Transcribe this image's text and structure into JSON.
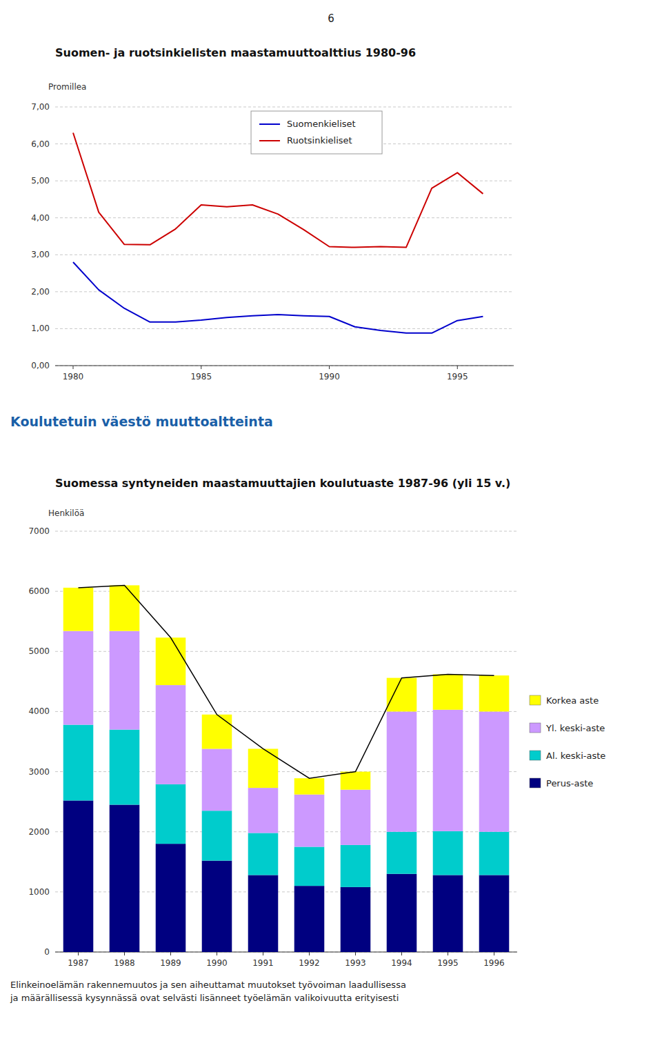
{
  "page_number": "6",
  "section_title": "Koulutetuin väestö muuttoaltteinta",
  "bottom_text": "Elinkeinoelämän rakennemuutos ja sen aiheuttamat muutokset työvoiman laadullisessa\nja määrällisessä kysynnässä ovat selvästi lisänneet työelämän valikoivuutta erityisesti",
  "chart_data": [
    {
      "type": "line",
      "title": "Suomen- ja ruotsinkielisten maastamuuttoalttius 1980-96",
      "ylabel": "Promillea",
      "x": [
        1980,
        1981,
        1982,
        1983,
        1984,
        1985,
        1986,
        1987,
        1988,
        1989,
        1990,
        1991,
        1992,
        1993,
        1994,
        1995,
        1996
      ],
      "series": [
        {
          "name": "Suomenkieliset",
          "color": "#0000cc",
          "values": [
            2.8,
            2.05,
            1.55,
            1.18,
            1.18,
            1.23,
            1.3,
            1.35,
            1.38,
            1.35,
            1.33,
            1.05,
            0.95,
            0.88,
            0.88,
            1.22,
            1.33
          ]
        },
        {
          "name": "Ruotsinkieliset",
          "color": "#cc0000",
          "values": [
            6.3,
            4.15,
            3.28,
            3.27,
            3.7,
            4.35,
            4.3,
            4.35,
            4.1,
            3.68,
            3.22,
            3.2,
            3.22,
            3.2,
            4.8,
            5.22,
            4.65
          ]
        }
      ],
      "xlim": [
        1979.3,
        1997.2
      ],
      "xticks": [
        1980,
        1985,
        1990,
        1995
      ],
      "ylim": [
        0,
        7
      ],
      "yticks": [
        {
          "value": 0,
          "label": "0,00"
        },
        {
          "value": 1,
          "label": "1,00"
        },
        {
          "value": 2,
          "label": "2,00"
        },
        {
          "value": 3,
          "label": "3,00"
        },
        {
          "value": 4,
          "label": "4,00"
        },
        {
          "value": 5,
          "label": "5,00"
        },
        {
          "value": 6,
          "label": "6,00"
        },
        {
          "value": 7,
          "label": "7,00"
        }
      ],
      "grid": true,
      "legend": "top"
    },
    {
      "type": "bar",
      "stacked": true,
      "title": "Suomessa syntyneiden maastamuuttajien koulutuaste 1987-96 (yli 15 v.)",
      "ylabel": "Henkilöä",
      "categories": [
        "1987",
        "1988",
        "1989",
        "1990",
        "1991",
        "1992",
        "1993",
        "1994",
        "1995",
        "1996"
      ],
      "series": [
        {
          "name": "Perus-aste",
          "color": "#000080",
          "values": [
            2520,
            2450,
            1800,
            1520,
            1280,
            1100,
            1080,
            1300,
            1280,
            1280
          ]
        },
        {
          "name": "Al. keski-aste",
          "color": "#00cccc",
          "values": [
            1260,
            1250,
            990,
            830,
            700,
            650,
            700,
            700,
            730,
            720
          ]
        },
        {
          "name": "Yl. keski-aste",
          "color": "#cc99ff",
          "values": [
            1560,
            1640,
            1650,
            1030,
            750,
            870,
            920,
            2000,
            2020,
            2000
          ]
        },
        {
          "name": "Korkea aste",
          "color": "#ffff00",
          "values": [
            720,
            760,
            790,
            570,
            650,
            270,
            300,
            560,
            590,
            600
          ]
        },
        {
          "type": "line",
          "color": "#000000",
          "values": [
            6060,
            6100,
            5230,
            3950,
            3380,
            2890,
            3000,
            4560,
            4620,
            4600
          ]
        }
      ],
      "ylim": [
        0,
        7000
      ],
      "yticks": [
        0,
        1000,
        2000,
        3000,
        4000,
        5000,
        6000,
        7000
      ],
      "grid": true,
      "legend": "right"
    }
  ]
}
